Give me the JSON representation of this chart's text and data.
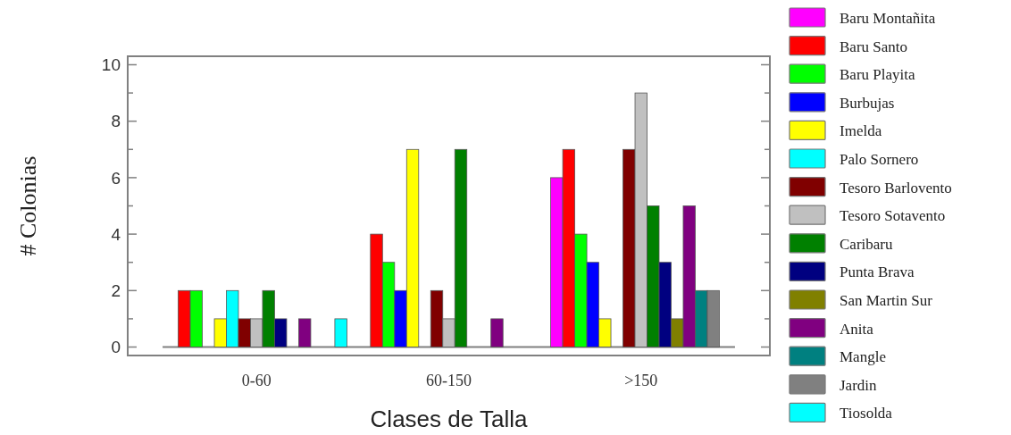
{
  "chart_data": {
    "type": "bar",
    "xlabel": "Clases de Talla",
    "ylabel": "# Colonias",
    "categories": [
      "0-60",
      "60-150",
      ">150"
    ],
    "ylim": [
      -0.3,
      10.3
    ],
    "yticks": [
      0,
      {
        "value": 1,
        "label": null
      },
      2,
      {
        "value": 3,
        "label": null
      },
      4,
      {
        "value": 5,
        "label": null
      },
      6,
      {
        "value": 7,
        "label": null
      },
      8,
      {
        "value": 9,
        "label": null
      },
      10
    ],
    "legend": "right",
    "grid": false,
    "ref_lines": [
      {
        "axis": "y",
        "value": 0,
        "color": "#808080"
      }
    ],
    "series": [
      {
        "name": "Baru Montañita",
        "color": "#ff00ff",
        "values": [
          0,
          0,
          6
        ]
      },
      {
        "name": "Baru Santo",
        "color": "#ff0000",
        "values": [
          2,
          4,
          7
        ]
      },
      {
        "name": "Baru Playita",
        "color": "#00ff00",
        "values": [
          2,
          3,
          4
        ]
      },
      {
        "name": "Burbujas",
        "color": "#0000ff",
        "values": [
          0,
          2,
          3
        ]
      },
      {
        "name": "Imelda",
        "color": "#ffff00",
        "values": [
          1,
          7,
          1
        ]
      },
      {
        "name": "Palo Sornero",
        "color": "#00ffff",
        "values": [
          2,
          0,
          0
        ]
      },
      {
        "name": "Tesoro Barlovento",
        "color": "#800000",
        "values": [
          1,
          2,
          7
        ]
      },
      {
        "name": "Tesoro Sotavento",
        "color": "#c0c0c0",
        "values": [
          1,
          1,
          9
        ]
      },
      {
        "name": "Caribaru",
        "color": "#008000",
        "values": [
          2,
          7,
          5
        ]
      },
      {
        "name": "Punta Brava",
        "color": "#000080",
        "values": [
          1,
          0,
          3
        ]
      },
      {
        "name": "San Martin Sur",
        "color": "#808000",
        "values": [
          0,
          0,
          1
        ]
      },
      {
        "name": "Anita",
        "color": "#800080",
        "values": [
          1,
          1,
          5
        ]
      },
      {
        "name": "Mangle",
        "color": "#008080",
        "values": [
          0,
          0,
          2
        ]
      },
      {
        "name": "Jardin",
        "color": "#808080",
        "values": [
          0,
          0,
          2
        ]
      },
      {
        "name": "Tiosolda",
        "color": "#00ffff",
        "values": [
          1,
          0,
          0
        ]
      }
    ]
  }
}
